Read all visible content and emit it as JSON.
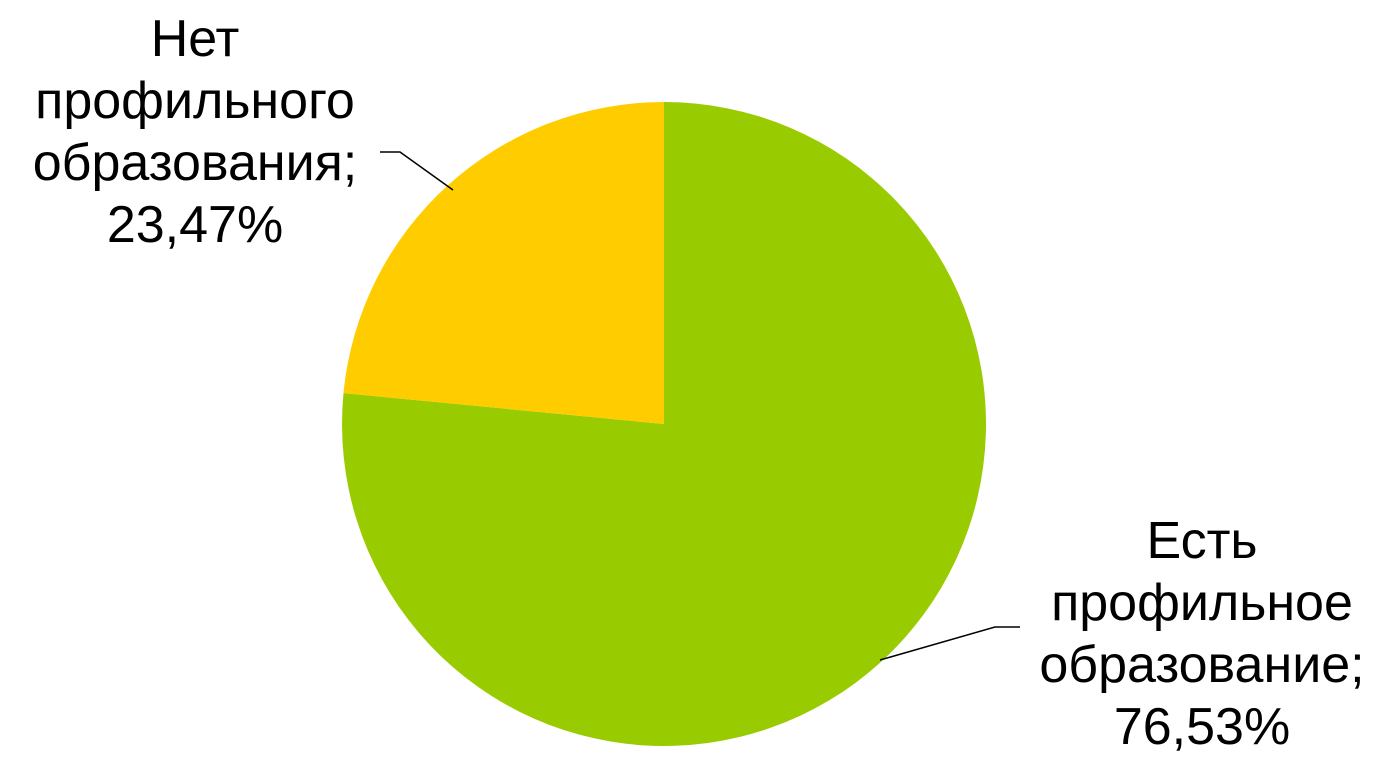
{
  "chart_data": {
    "type": "pie",
    "title": "",
    "slices": [
      {
        "label_lines": [
          "Есть",
          "профильное",
          "образование;",
          "76,53%"
        ],
        "category": "Есть профильное образование",
        "value": 76.53,
        "color": "#99cc00"
      },
      {
        "label_lines": [
          "Нет",
          "профильного",
          "образования;",
          "23,47%"
        ],
        "category": "Нет профильного образования",
        "value": 23.47,
        "color": "#ffcc00"
      }
    ],
    "legend": "none",
    "data_labels": "outside with leader lines"
  }
}
